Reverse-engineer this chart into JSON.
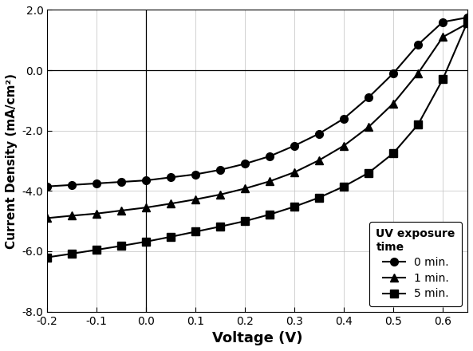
{
  "title": "",
  "xlabel": "Voltage (V)",
  "ylabel": "Current Density (mA/cm²)",
  "xlim": [
    -0.2,
    0.65
  ],
  "ylim": [
    -8.0,
    2.0
  ],
  "xticks": [
    -0.2,
    -0.1,
    0.0,
    0.1,
    0.2,
    0.3,
    0.4,
    0.5,
    0.6
  ],
  "yticks": [
    -8.0,
    -6.0,
    -4.0,
    -2.0,
    0.0,
    2.0
  ],
  "ytick_labels": [
    "-8.0",
    "-6.0",
    "-4.0",
    "-2.0",
    "0.0",
    "2.0"
  ],
  "legend_title": "UV exposure\ntime",
  "series": [
    {
      "label": "0 min.",
      "marker": "o",
      "color": "#000000",
      "x": [
        -0.2,
        -0.15,
        -0.1,
        -0.05,
        0.0,
        0.05,
        0.1,
        0.15,
        0.2,
        0.25,
        0.3,
        0.35,
        0.4,
        0.45,
        0.5,
        0.55,
        0.6,
        0.65
      ],
      "y": [
        -3.85,
        -3.8,
        -3.75,
        -3.7,
        -3.65,
        -3.55,
        -3.45,
        -3.3,
        -3.1,
        -2.85,
        -2.5,
        -2.1,
        -1.6,
        -0.9,
        -0.1,
        0.85,
        1.6,
        1.75
      ]
    },
    {
      "label": "1 min.",
      "marker": "^",
      "color": "#000000",
      "x": [
        -0.2,
        -0.15,
        -0.1,
        -0.05,
        0.0,
        0.05,
        0.1,
        0.15,
        0.2,
        0.25,
        0.3,
        0.35,
        0.4,
        0.45,
        0.5,
        0.55,
        0.6,
        0.65
      ],
      "y": [
        -4.9,
        -4.82,
        -4.75,
        -4.65,
        -4.55,
        -4.42,
        -4.28,
        -4.12,
        -3.92,
        -3.68,
        -3.38,
        -2.98,
        -2.5,
        -1.88,
        -1.1,
        -0.1,
        1.1,
        1.55
      ]
    },
    {
      "label": "5 min.",
      "marker": "s",
      "color": "#000000",
      "x": [
        -0.2,
        -0.15,
        -0.1,
        -0.05,
        0.0,
        0.05,
        0.1,
        0.15,
        0.2,
        0.25,
        0.3,
        0.35,
        0.4,
        0.45,
        0.5,
        0.55,
        0.6,
        0.65
      ],
      "y": [
        -6.2,
        -6.08,
        -5.95,
        -5.82,
        -5.68,
        -5.52,
        -5.35,
        -5.18,
        -5.0,
        -4.78,
        -4.52,
        -4.22,
        -3.85,
        -3.4,
        -2.75,
        -1.8,
        -0.3,
        1.6
      ]
    }
  ],
  "background_color": "#ffffff",
  "markersize": 7,
  "linewidth": 1.5
}
